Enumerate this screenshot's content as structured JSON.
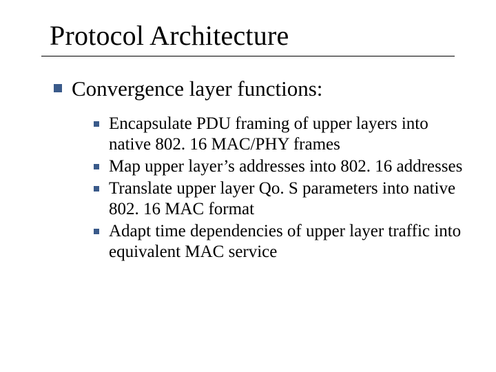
{
  "slide": {
    "title": "Protocol Architecture",
    "title_fontsize": 40,
    "rule_color": "#000000",
    "background_color": "#ffffff",
    "text_color": "#000000",
    "bullet_color": "#3a5a8a",
    "font_family": "Times New Roman",
    "level1": {
      "text": "Convergence layer functions:",
      "fontsize": 31
    },
    "level2_fontsize": 25,
    "level2_items": [
      "Encapsulate PDU framing of upper layers into native 802. 16 MAC/PHY frames",
      "Map upper layer’s addresses into 802. 16 addresses",
      "Translate upper layer Qo. S parameters into native 802. 16 MAC format",
      "Adapt time dependencies of upper layer traffic into equivalent MAC service"
    ]
  }
}
